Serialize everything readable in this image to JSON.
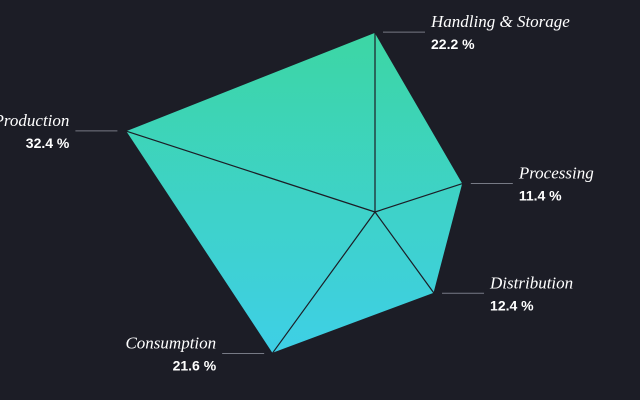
{
  "chart_data": {
    "type": "radar",
    "categories": [
      "Handling & Storage",
      "Processing",
      "Distribution",
      "Consumption",
      "Production"
    ],
    "values": [
      22.2,
      11.4,
      12.4,
      21.6,
      32.4
    ],
    "value_labels": [
      "22.2 %",
      "11.4 %",
      "12.4 %",
      "21.6 %",
      "32.4 %"
    ],
    "colors": [
      "#3dd6a4",
      "#3ecfe6"
    ]
  }
}
